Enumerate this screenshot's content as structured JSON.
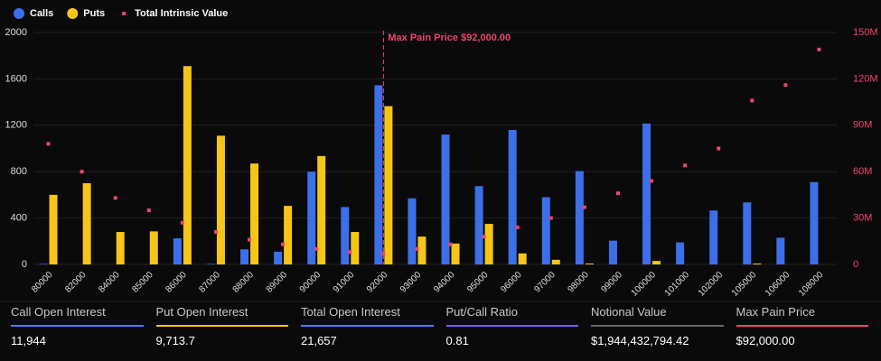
{
  "chart_data": {
    "type": "bar",
    "legend": {
      "calls": "Calls",
      "puts": "Puts",
      "intrinsic": "Total Intrinsic Value"
    },
    "categories": [
      "80000",
      "82000",
      "84000",
      "85000",
      "86000",
      "87000",
      "88000",
      "89000",
      "90000",
      "91000",
      "92000",
      "93000",
      "94000",
      "95000",
      "96000",
      "97000",
      "98000",
      "99000",
      "100000",
      "101000",
      "102000",
      "105000",
      "106000",
      "108000"
    ],
    "series": [
      {
        "name": "Calls",
        "color": "#3d6fe8",
        "values": [
          5,
          0,
          0,
          0,
          225,
          5,
          130,
          110,
          800,
          495,
          1545,
          570,
          1120,
          675,
          1160,
          580,
          805,
          205,
          1215,
          190,
          465,
          535,
          230,
          710
        ]
      },
      {
        "name": "Puts",
        "color": "#f5c518",
        "values": [
          600,
          700,
          280,
          285,
          1710,
          1110,
          870,
          505,
          935,
          280,
          1365,
          240,
          180,
          350,
          95,
          40,
          8,
          0,
          30,
          0,
          0,
          8,
          0,
          0
        ]
      },
      {
        "name": "Total Intrinsic Value",
        "color": "#f0456a",
        "axis": "y2",
        "type": "scatter",
        "values": [
          78000000,
          60000000,
          43000000,
          35000000,
          27000000,
          21000000,
          16000000,
          13000000,
          10000000,
          8000000,
          7000000,
          10000000,
          13000000,
          18000000,
          24000000,
          30000000,
          37000000,
          46000000,
          54000000,
          64000000,
          75000000,
          106000000,
          116000000,
          139000000
        ]
      }
    ],
    "ylim": [
      0,
      2000
    ],
    "yticks": [
      0,
      400,
      800,
      1200,
      1600,
      2000
    ],
    "y2lim": [
      0,
      150000000
    ],
    "y2ticks": [
      0,
      {
        "value": 30000000,
        "label": "30M"
      },
      {
        "value": 60000000,
        "label": "60M"
      },
      {
        "value": 90000000,
        "label": "90M"
      },
      {
        "value": 120000000,
        "label": "120M"
      },
      {
        "value": 150000000,
        "label": "150M"
      }
    ],
    "grid": true,
    "annotation": {
      "text": "Max Pain Price $92,000.00",
      "category": "92000",
      "color": "#f0456a"
    }
  },
  "stats": [
    {
      "label": "Call Open Interest",
      "value": "11,944",
      "color": "#4a7cf0"
    },
    {
      "label": "Put Open Interest",
      "value": "9,713.7",
      "color": "#f5c518"
    },
    {
      "label": "Total Open Interest",
      "value": "21,657",
      "color": "#4a7cf0"
    },
    {
      "label": "Put/Call Ratio",
      "value": "0.81",
      "color": "#7b5cf0"
    },
    {
      "label": "Notional Value",
      "value": "$1,944,432,794.42",
      "color": "#666666"
    },
    {
      "label": "Max Pain Price",
      "value": "$92,000.00",
      "color": "#f0456a"
    }
  ]
}
